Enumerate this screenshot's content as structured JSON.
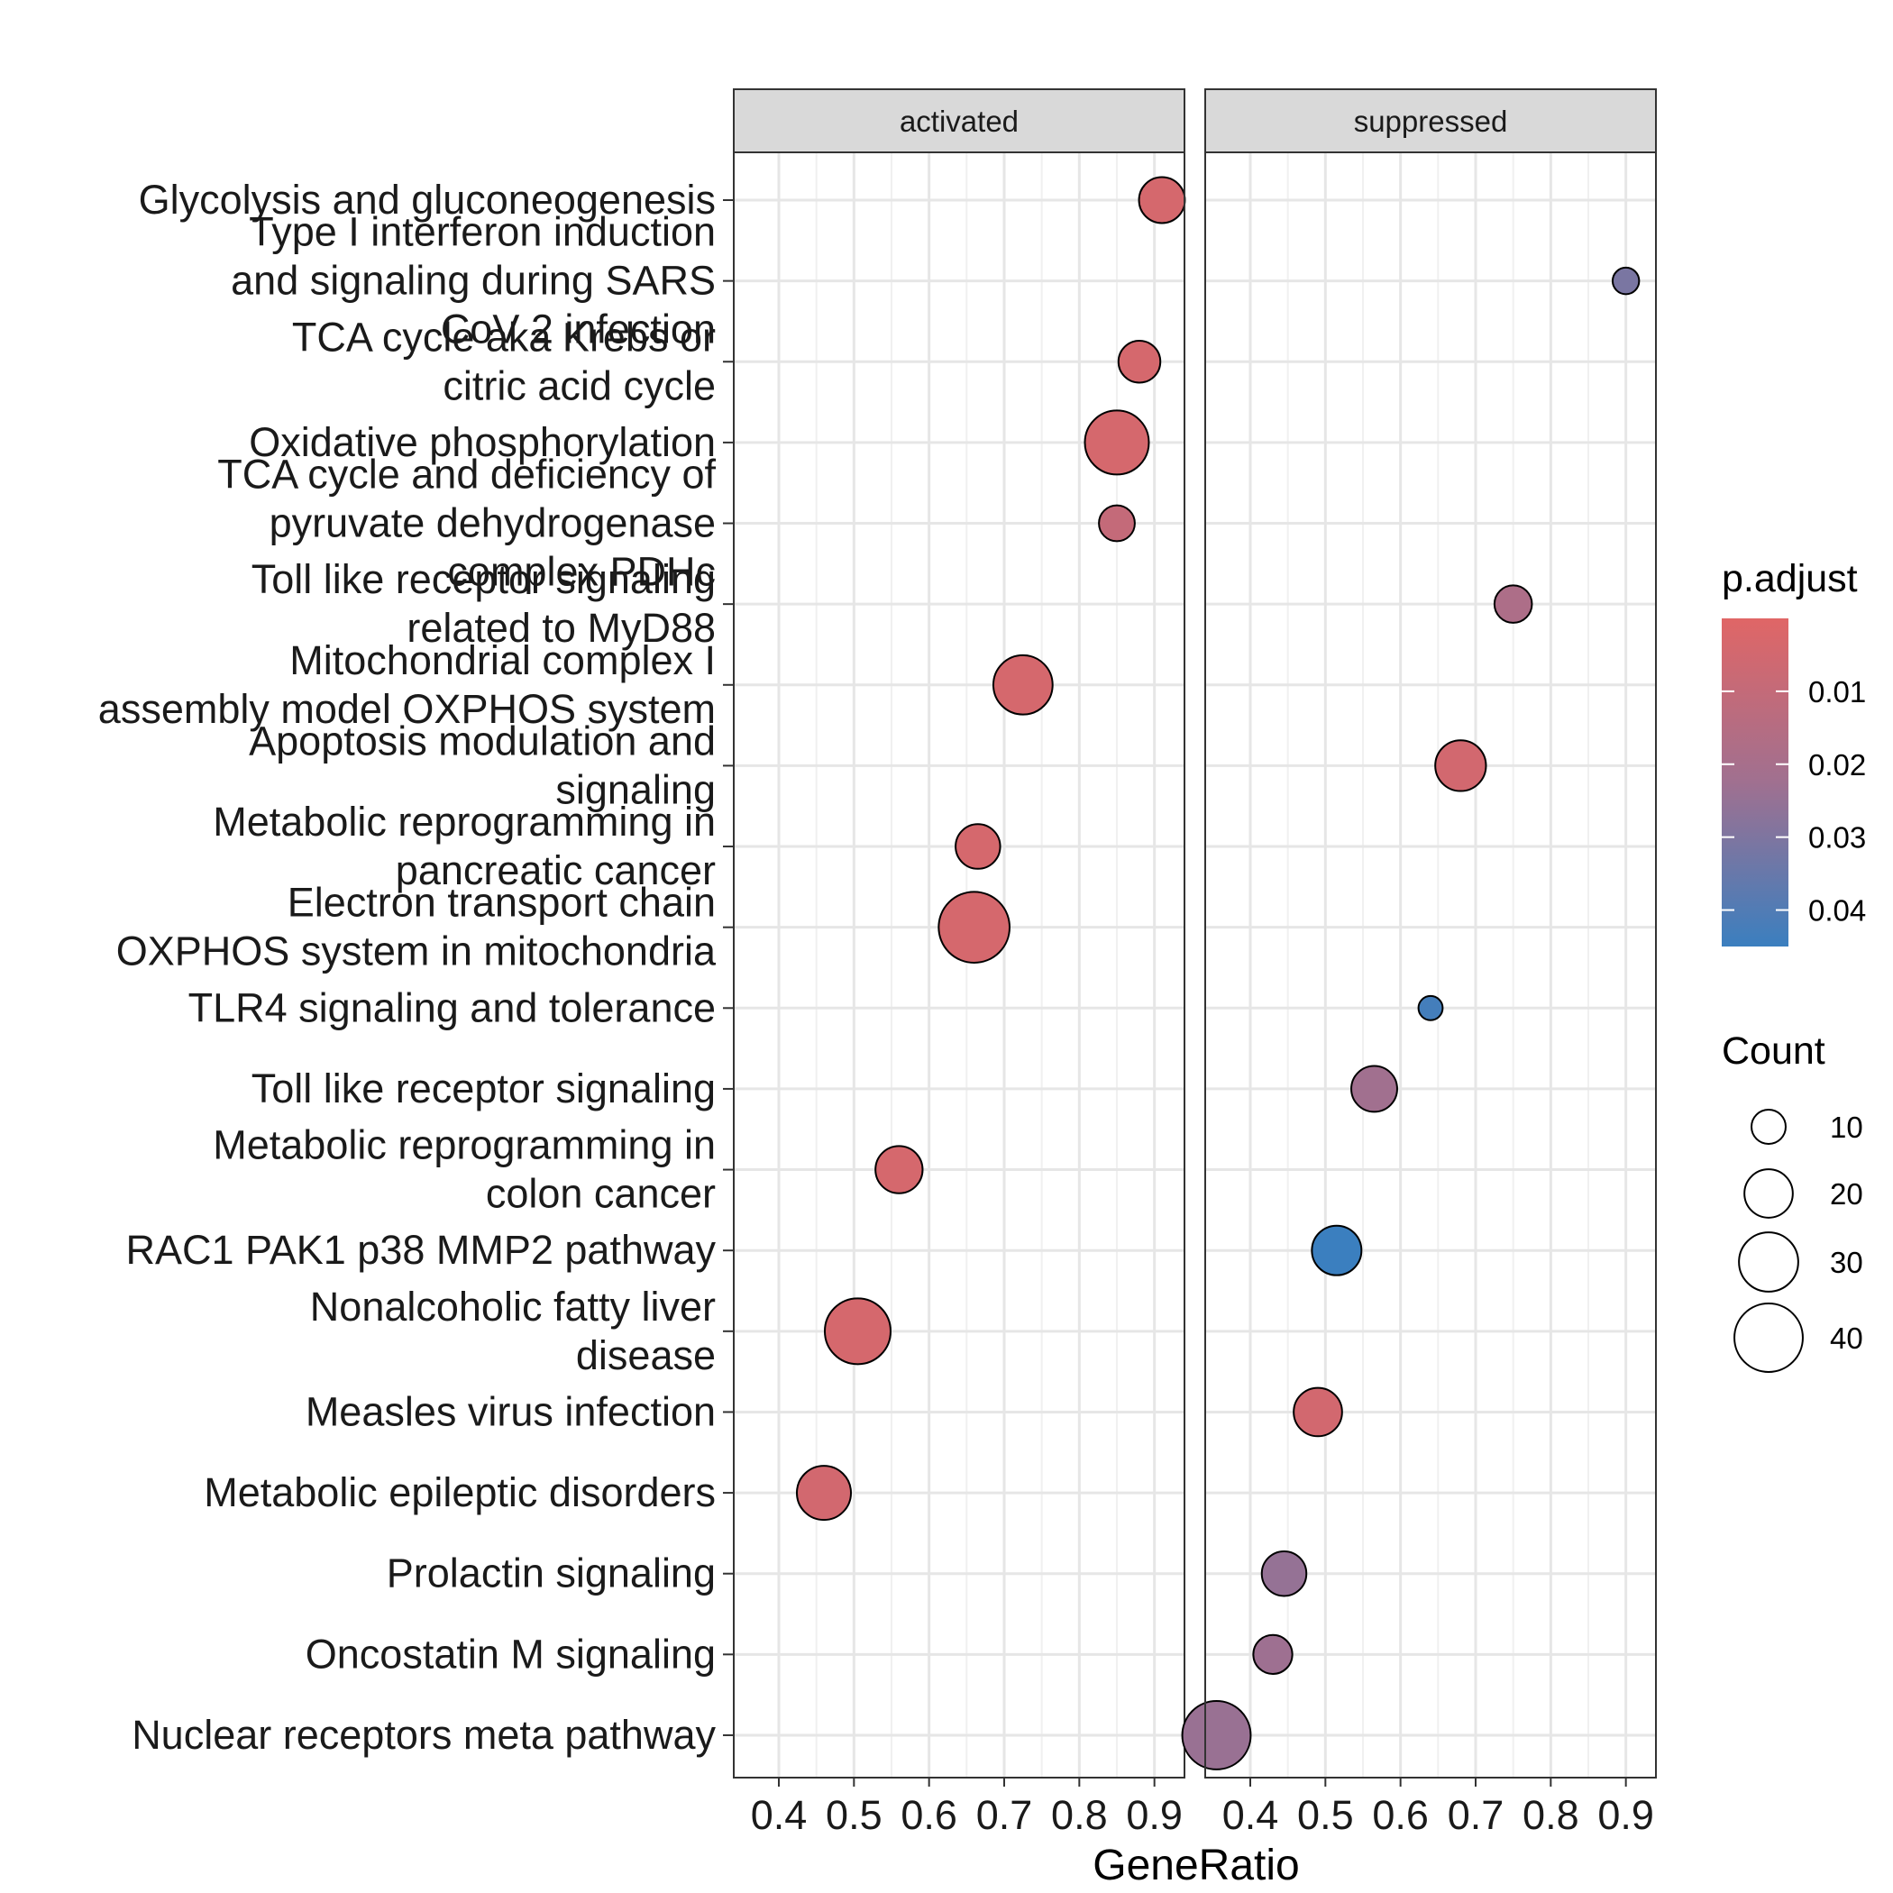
{
  "chart_data": {
    "type": "scatter",
    "xlabel": "GeneRatio",
    "xlim": [
      0.34,
      0.94
    ],
    "xticks": [
      0.4,
      0.5,
      0.6,
      0.7,
      0.8,
      0.9
    ],
    "xtick_labels": [
      "0.4",
      "0.5",
      "0.6",
      "0.7",
      "0.8",
      "0.9"
    ],
    "grid": true,
    "facets": [
      "activated",
      "suppressed"
    ],
    "categories": [
      "Glycolysis and gluconeogenesis",
      "Type I interferon induction\nand signaling during SARS\nCoV 2 infection",
      "TCA cycle aka Krebs or\ncitric acid cycle ",
      "Oxidative phosphorylation",
      "TCA cycle and deficiency of\npyruvate dehydrogenase\ncomplex PDHc",
      "Toll like receptor signaling\nrelated to MyD88",
      "Mitochondrial complex I\nassembly model OXPHOS system",
      "Apoptosis modulation and\nsignaling",
      "Metabolic reprogramming in\npancreatic cancer",
      "Electron transport chain\nOXPHOS system in mitochondria",
      "TLR4 signaling and tolerance",
      "Toll like receptor signaling",
      "Metabolic reprogramming in\ncolon cancer",
      "RAC1 PAK1 p38 MMP2 pathway",
      "Nonalcoholic fatty liver\ndisease",
      "Measles virus infection",
      "Metabolic epileptic disorders",
      "Prolactin signaling",
      "Oncostatin M signaling",
      "Nuclear receptors meta pathway"
    ],
    "points": [
      {
        "facet": "activated",
        "category": 0,
        "x": 0.91,
        "count": 18,
        "p_adjust": 0.004
      },
      {
        "facet": "suppressed",
        "category": 1,
        "x": 0.9,
        "count": 6,
        "p_adjust": 0.031
      },
      {
        "facet": "activated",
        "category": 2,
        "x": 0.88,
        "count": 15,
        "p_adjust": 0.004
      },
      {
        "facet": "activated",
        "category": 3,
        "x": 0.85,
        "count": 35,
        "p_adjust": 0.004
      },
      {
        "facet": "activated",
        "category": 4,
        "x": 0.85,
        "count": 11,
        "p_adjust": 0.01
      },
      {
        "facet": "suppressed",
        "category": 5,
        "x": 0.75,
        "count": 12,
        "p_adjust": 0.018
      },
      {
        "facet": "activated",
        "category": 6,
        "x": 0.725,
        "count": 30,
        "p_adjust": 0.004
      },
      {
        "facet": "suppressed",
        "category": 7,
        "x": 0.68,
        "count": 22,
        "p_adjust": 0.005
      },
      {
        "facet": "activated",
        "category": 8,
        "x": 0.665,
        "count": 17,
        "p_adjust": 0.004
      },
      {
        "facet": "activated",
        "category": 9,
        "x": 0.66,
        "count": 43,
        "p_adjust": 0.004
      },
      {
        "facet": "suppressed",
        "category": 10,
        "x": 0.64,
        "count": 5,
        "p_adjust": 0.043
      },
      {
        "facet": "suppressed",
        "category": 11,
        "x": 0.565,
        "count": 18,
        "p_adjust": 0.022
      },
      {
        "facet": "activated",
        "category": 12,
        "x": 0.56,
        "count": 19,
        "p_adjust": 0.004
      },
      {
        "facet": "suppressed",
        "category": 13,
        "x": 0.515,
        "count": 21,
        "p_adjust": 0.046
      },
      {
        "facet": "activated",
        "category": 14,
        "x": 0.505,
        "count": 37,
        "p_adjust": 0.004
      },
      {
        "facet": "suppressed",
        "category": 15,
        "x": 0.49,
        "count": 20,
        "p_adjust": 0.005
      },
      {
        "facet": "activated",
        "category": 16,
        "x": 0.46,
        "count": 25,
        "p_adjust": 0.005
      },
      {
        "facet": "suppressed",
        "category": 17,
        "x": 0.445,
        "count": 17,
        "p_adjust": 0.025
      },
      {
        "facet": "suppressed",
        "category": 18,
        "x": 0.43,
        "count": 13,
        "p_adjust": 0.023
      },
      {
        "facet": "suppressed",
        "category": 19,
        "x": 0.355,
        "count": 40,
        "p_adjust": 0.024
      }
    ],
    "legend": {
      "color": {
        "title": "p.adjust",
        "range": [
          0.0,
          0.045
        ],
        "ticks": [
          0.01,
          0.02,
          0.03,
          0.04
        ],
        "tick_labels": [
          "0.01",
          "0.02",
          "0.03",
          "0.04"
        ],
        "low_color": "#E06666",
        "mid_color": "#A07090",
        "high_color": "#3B7FBF"
      },
      "size": {
        "title": "Count",
        "values": [
          10,
          20,
          30,
          40
        ],
        "labels": [
          "10",
          "20",
          "30",
          "40"
        ]
      },
      "placement": "right"
    }
  }
}
